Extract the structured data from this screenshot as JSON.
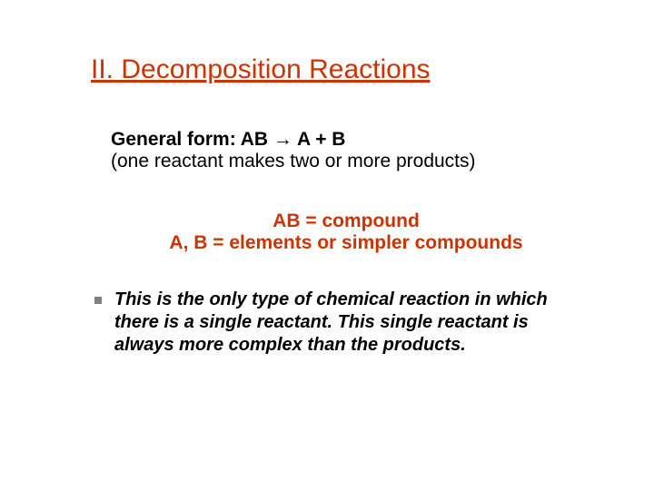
{
  "title": "II. Decomposition Reactions",
  "general_form": {
    "line1": "General form:  AB  →  A  +  B",
    "line2": "(one reactant makes two or more products)"
  },
  "compound": {
    "line1": "AB = compound",
    "line2": "A, B = elements or simpler compounds"
  },
  "bullet": "This is the only type of chemical reaction in which there is a single reactant. This single reactant is always more complex than the products.",
  "colors": {
    "accent": "#cc3300",
    "text": "#000000",
    "bullet_marker": "#808080",
    "background": "#ffffff"
  },
  "typography": {
    "title_fontsize": 30,
    "body_fontsize": 21,
    "bullet_fontsize": 20,
    "font_family": "Verdana"
  }
}
